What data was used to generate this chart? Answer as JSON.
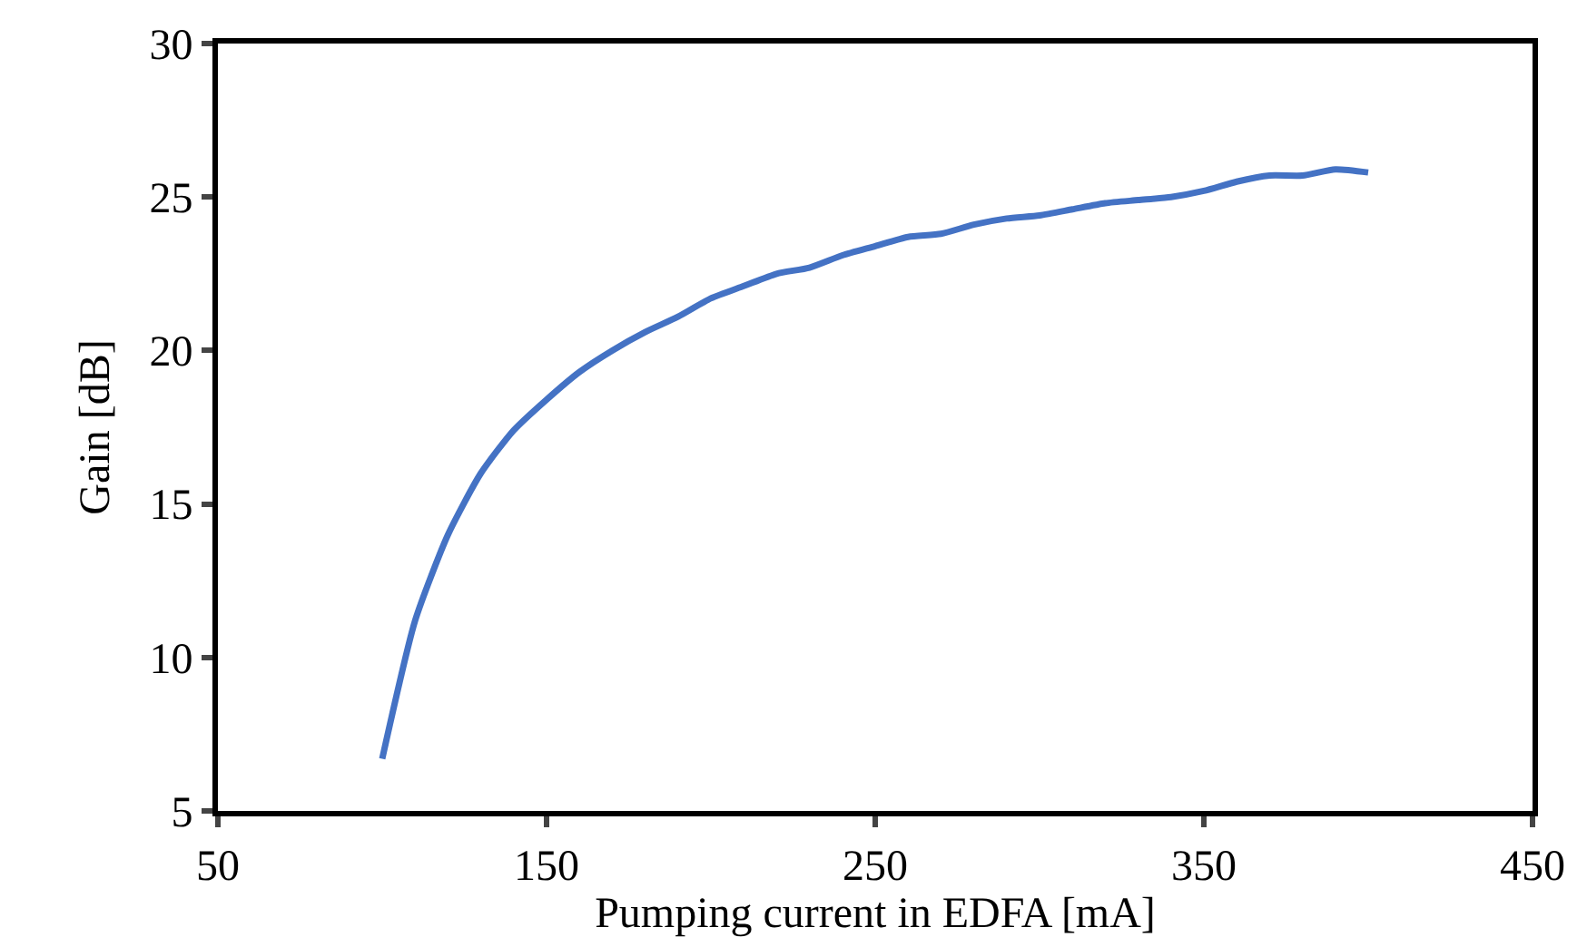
{
  "chart_data": {
    "type": "line",
    "xlabel": "Pumping current in EDFA [mA]",
    "ylabel": "Gain [dB]",
    "x": [
      100,
      110,
      120,
      130,
      140,
      150,
      160,
      170,
      180,
      190,
      200,
      210,
      220,
      230,
      240,
      250,
      260,
      270,
      280,
      290,
      300,
      310,
      320,
      330,
      340,
      350,
      360,
      370,
      380,
      390,
      400
    ],
    "series": [
      {
        "color": "#4472c4",
        "values": [
          6.7,
          11.2,
          14.0,
          16.0,
          17.4,
          18.4,
          19.3,
          20.0,
          20.6,
          21.1,
          21.7,
          22.1,
          22.5,
          22.7,
          23.1,
          23.4,
          23.7,
          23.8,
          24.1,
          24.3,
          24.4,
          24.6,
          24.8,
          24.9,
          25.0,
          25.2,
          25.5,
          25.7,
          25.7,
          25.9,
          25.8
        ]
      }
    ],
    "xlim": [
      50,
      450
    ],
    "xticks": [
      50,
      150,
      250,
      350,
      450
    ],
    "ylim": [
      5,
      30
    ],
    "yticks": [
      5,
      10,
      15,
      20,
      25,
      30
    ],
    "grid": false,
    "legend": false,
    "marker": "none",
    "line_style": "solid"
  }
}
